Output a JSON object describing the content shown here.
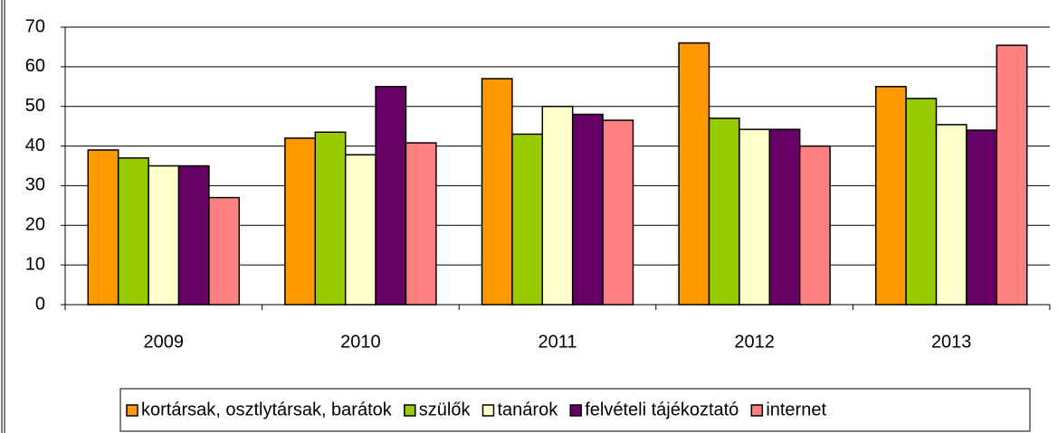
{
  "chart_data": {
    "type": "bar",
    "categories": [
      "2009",
      "2010",
      "2011",
      "2012",
      "2013"
    ],
    "series": [
      {
        "name": "kortársak, osztlytársak, barátok",
        "color": "#ff9900",
        "values": [
          39,
          42,
          57,
          66,
          55
        ]
      },
      {
        "name": "szülők",
        "color": "#99cc00",
        "values": [
          37,
          43.5,
          43,
          47,
          52
        ]
      },
      {
        "name": "tanárok",
        "color": "#ffffcc",
        "values": [
          35,
          37.8,
          50,
          44.2,
          45.4
        ]
      },
      {
        "name": "felvételi tájékoztató",
        "color": "#660066",
        "values": [
          35,
          55,
          48,
          44.2,
          44
        ]
      },
      {
        "name": "internet",
        "color": "#ff8080",
        "values": [
          27,
          40.8,
          46.5,
          40,
          65.4
        ]
      }
    ],
    "ylim": [
      0,
      70
    ],
    "yticks": [
      0,
      10,
      20,
      30,
      40,
      50,
      60,
      70
    ],
    "grid": true,
    "legend": "bottom"
  }
}
